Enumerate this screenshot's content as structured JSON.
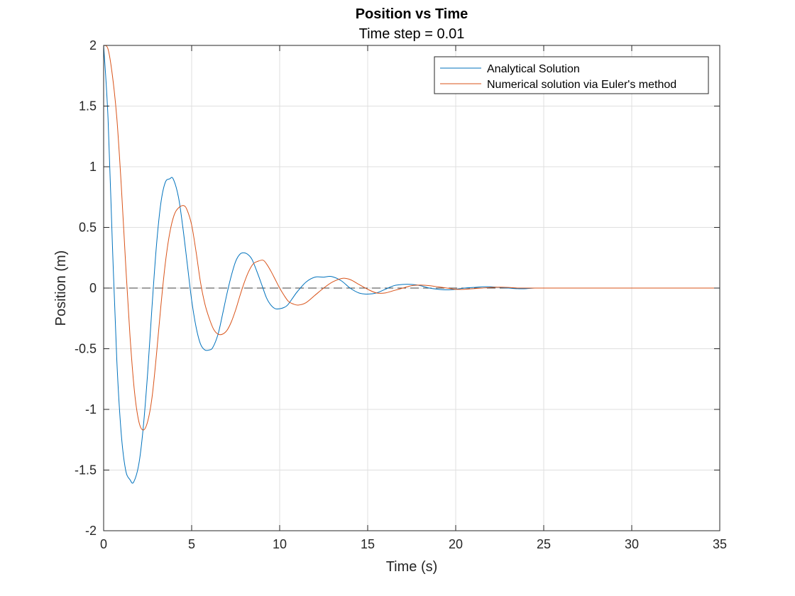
{
  "chart_data": {
    "type": "line",
    "title": "Position vs Time",
    "subtitle": "Time step = 0.01",
    "xlabel": "Time (s)",
    "ylabel": "Position (m)",
    "xlim": [
      0,
      35
    ],
    "ylim": [
      -2,
      2
    ],
    "xticks": [
      0,
      5,
      10,
      15,
      20,
      25,
      30,
      35
    ],
    "xtick_labels": [
      "0",
      "5",
      "10",
      "15",
      "20",
      "25",
      "30",
      "35"
    ],
    "yticks": [
      -2,
      -1.5,
      -1,
      -0.5,
      0,
      0.5,
      1,
      1.5,
      2
    ],
    "ytick_labels": [
      "-2",
      "-1.5",
      "-1",
      "-0.5",
      "0",
      "0.5",
      "1",
      "1.5",
      "2"
    ],
    "grid": true,
    "legend_position": "top-right",
    "zero_line": {
      "y": 0,
      "style": "dashed",
      "color": "#404040"
    },
    "series": [
      {
        "name": "Analytical Solution",
        "color": "#0072BD",
        "x": [
          0,
          0.25,
          0.5,
          0.75,
          1.0,
          1.25,
          1.5,
          1.7,
          2.0,
          2.25,
          2.5,
          2.75,
          3.0,
          3.25,
          3.5,
          3.75,
          3.95,
          4.25,
          4.5,
          4.75,
          5.0,
          5.25,
          5.5,
          5.75,
          6.0,
          6.2,
          6.5,
          6.75,
          7.0,
          7.25,
          7.5,
          7.75,
          8.0,
          8.25,
          8.45,
          8.75,
          9.0,
          9.25,
          9.5,
          9.75,
          10.0,
          10.25,
          10.45,
          10.75,
          11.0,
          11.5,
          12.0,
          12.5,
          12.95,
          13.5,
          14.0,
          14.5,
          15.0,
          15.5,
          16.0,
          16.5,
          17.0,
          17.5,
          18.0,
          18.5,
          19.0,
          19.5,
          20.0,
          20.5,
          21.0,
          21.5,
          22.0,
          22.5,
          23.0,
          23.5,
          24.0,
          24.5,
          25.0,
          26.0,
          27.0,
          28.0,
          29.0,
          30.0,
          31.0,
          32.0,
          33.0,
          34.0,
          35.0
        ],
        "y": [
          2.0,
          1.4,
          0.35,
          -0.6,
          -1.2,
          -1.5,
          -1.58,
          -1.6,
          -1.45,
          -1.15,
          -0.7,
          -0.15,
          0.35,
          0.7,
          0.87,
          0.9,
          0.9,
          0.75,
          0.5,
          0.2,
          -0.1,
          -0.32,
          -0.46,
          -0.51,
          -0.51,
          -0.49,
          -0.38,
          -0.22,
          -0.05,
          0.1,
          0.22,
          0.28,
          0.29,
          0.27,
          0.23,
          0.12,
          0.02,
          -0.08,
          -0.14,
          -0.17,
          -0.17,
          -0.16,
          -0.14,
          -0.08,
          -0.03,
          0.05,
          0.09,
          0.09,
          0.095,
          0.06,
          0.0,
          -0.04,
          -0.05,
          -0.04,
          -0.01,
          0.02,
          0.03,
          0.03,
          0.02,
          0.0,
          -0.01,
          -0.015,
          -0.01,
          0.0,
          0.005,
          0.01,
          0.01,
          0.005,
          0.0,
          -0.005,
          -0.005,
          0.0,
          0.0,
          0.0,
          0.0,
          0.0,
          0.0,
          0.0,
          0.0,
          0.0,
          0.0,
          0.0,
          0.0
        ]
      },
      {
        "name": "Numerical solution via Euler's method",
        "color": "#D95319",
        "x": [
          0,
          0.25,
          0.5,
          0.75,
          1.0,
          1.25,
          1.5,
          1.75,
          2.0,
          2.25,
          2.5,
          2.75,
          3.0,
          3.25,
          3.5,
          3.75,
          4.0,
          4.25,
          4.55,
          4.75,
          5.0,
          5.25,
          5.5,
          5.75,
          6.0,
          6.25,
          6.5,
          6.75,
          7.0,
          7.25,
          7.5,
          7.75,
          8.0,
          8.25,
          8.5,
          8.75,
          9.05,
          9.25,
          9.5,
          9.75,
          10.0,
          10.25,
          10.5,
          10.75,
          11.05,
          11.5,
          12.0,
          12.5,
          13.0,
          13.55,
          14.0,
          14.5,
          15.0,
          15.5,
          16.0,
          16.5,
          17.0,
          17.5,
          18.0,
          18.5,
          19.0,
          19.5,
          20.0,
          20.5,
          21.0,
          21.5,
          22.0,
          22.5,
          23.0,
          23.5,
          24.0,
          25.0,
          26.0,
          27.0,
          28.0,
          29.0,
          30.0,
          31.0,
          32.0,
          33.0,
          34.0,
          35.0
        ],
        "y": [
          2.0,
          1.97,
          1.75,
          1.4,
          0.85,
          0.2,
          -0.4,
          -0.85,
          -1.1,
          -1.17,
          -1.1,
          -0.9,
          -0.55,
          -0.15,
          0.2,
          0.45,
          0.6,
          0.66,
          0.68,
          0.64,
          0.52,
          0.3,
          0.05,
          -0.13,
          -0.25,
          -0.34,
          -0.38,
          -0.38,
          -0.35,
          -0.28,
          -0.18,
          -0.06,
          0.05,
          0.14,
          0.2,
          0.22,
          0.23,
          0.2,
          0.14,
          0.07,
          0.0,
          -0.06,
          -0.11,
          -0.13,
          -0.14,
          -0.12,
          -0.06,
          0.0,
          0.05,
          0.08,
          0.07,
          0.03,
          -0.01,
          -0.04,
          -0.04,
          -0.02,
          0.0,
          0.02,
          0.025,
          0.02,
          0.01,
          0.0,
          -0.01,
          -0.01,
          -0.005,
          0.0,
          0.005,
          0.007,
          0.005,
          0.0,
          0.0,
          0.0,
          0.0,
          0.0,
          0.0,
          0.0,
          0.0,
          0.0,
          0.0,
          0.0,
          0.0,
          0.0
        ]
      }
    ]
  }
}
